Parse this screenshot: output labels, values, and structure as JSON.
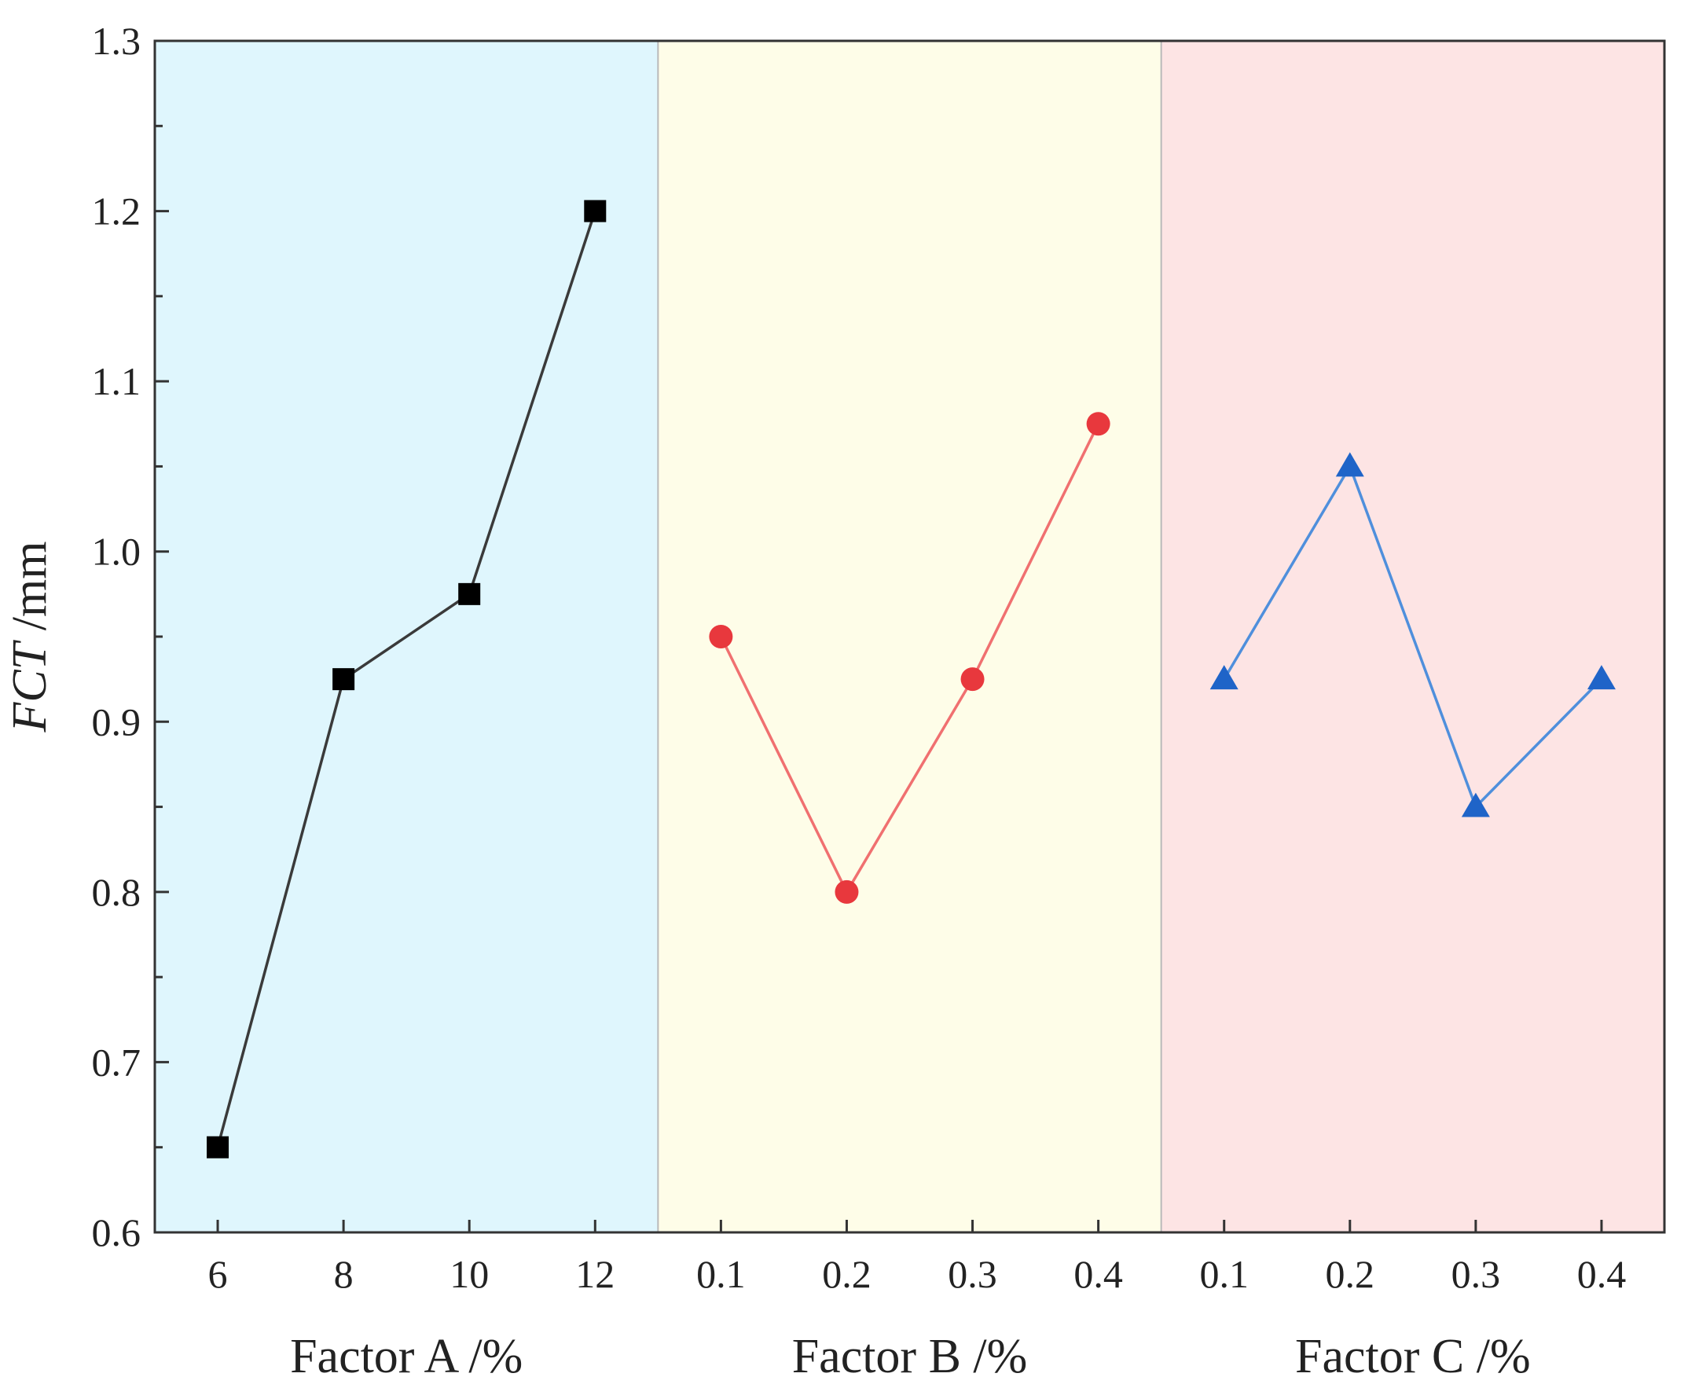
{
  "chart_data": {
    "type": "line",
    "ylabel_italic": "FCT",
    "ylabel_unit": " /mm",
    "ylim": [
      0.6,
      1.3
    ],
    "yticks": [
      "0.6",
      "0.7",
      "0.8",
      "0.9",
      "1.0",
      "1.1",
      "1.2",
      "1.3"
    ],
    "grid": false,
    "panels": [
      {
        "xlabel": "Factor A /%",
        "background": "#dff6fd",
        "categories": [
          "6",
          "8",
          "10",
          "12"
        ],
        "values": [
          0.65,
          0.925,
          0.975,
          1.2
        ],
        "marker": "square",
        "color": "#000000",
        "line_color": "#3a3a3a"
      },
      {
        "xlabel": "Factor B /%",
        "background": "#fefde8",
        "categories": [
          "0.1",
          "0.2",
          "0.3",
          "0.4"
        ],
        "values": [
          0.95,
          0.8,
          0.925,
          1.075
        ],
        "marker": "circle",
        "color": "#e8383d",
        "line_color": "#f07070"
      },
      {
        "xlabel": "Factor C /%",
        "background": "#fde4e4",
        "categories": [
          "0.1",
          "0.2",
          "0.3",
          "0.4"
        ],
        "values": [
          0.925,
          1.05,
          0.85,
          0.925
        ],
        "marker": "triangle",
        "color": "#1f64c8",
        "line_color": "#4f8fdc"
      }
    ]
  }
}
